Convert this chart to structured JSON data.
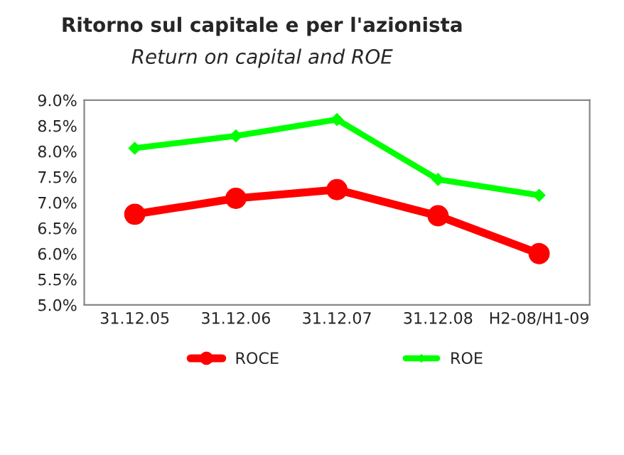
{
  "chart_data": {
    "type": "line",
    "title": "Ritorno sul capitale e per l'azionista",
    "subtitle": "Return on capital and ROE",
    "categories": [
      "31.12.05",
      "31.12.06",
      "31.12.07",
      "31.12.08",
      "H2-08/H1-09"
    ],
    "series": [
      {
        "name": "ROCE",
        "color": "#ff0000",
        "marker": "circle",
        "values": [
          6.77,
          7.08,
          7.25,
          6.74,
          6.0
        ]
      },
      {
        "name": "ROE",
        "color": "#00ff00",
        "marker": "diamond",
        "values": [
          8.06,
          8.3,
          8.62,
          7.45,
          7.14
        ]
      }
    ],
    "ylim": [
      5.0,
      9.0
    ],
    "yticks": [
      {
        "value": 5.0,
        "label": "5.0%"
      },
      {
        "value": 5.5,
        "label": "5.5%"
      },
      {
        "value": 6.0,
        "label": "6.0%"
      },
      {
        "value": 6.5,
        "label": "6.5%"
      },
      {
        "value": 7.0,
        "label": "7.0%"
      },
      {
        "value": 7.5,
        "label": "7.5%"
      },
      {
        "value": 8.0,
        "label": "8.0%"
      },
      {
        "value": 8.5,
        "label": "8.5%"
      },
      {
        "value": 9.0,
        "label": "9.0%"
      }
    ],
    "legend": "bottom",
    "grid": false,
    "line_style": "solid"
  }
}
